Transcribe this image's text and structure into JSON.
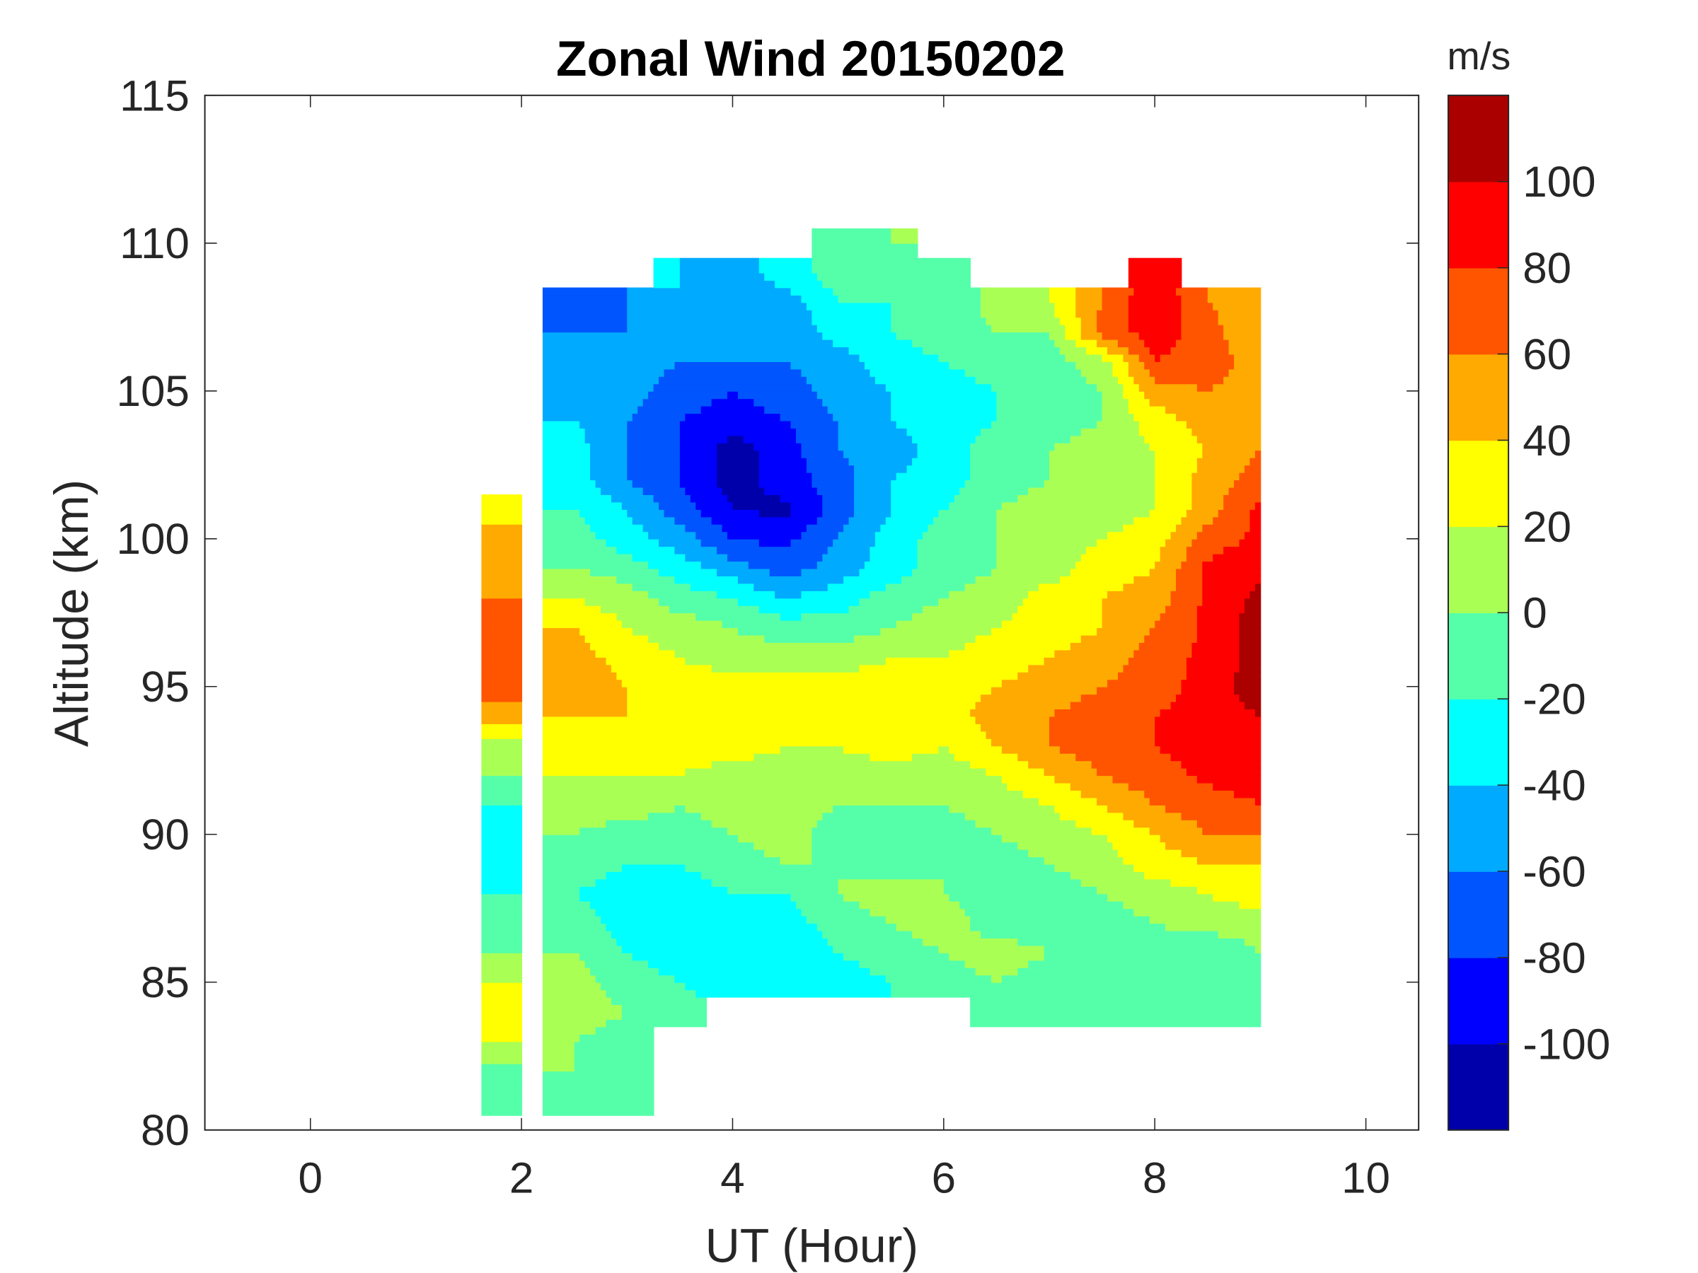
{
  "chart_data": {
    "type": "heatmap",
    "subtype": "filled-contour",
    "title": "Zonal Wind 20150202",
    "xlabel": "UT (Hour)",
    "ylabel": "Altitude (km)",
    "xlim": [
      -1,
      10.5
    ],
    "ylim": [
      80,
      115
    ],
    "xticks": [
      "0",
      "2",
      "4",
      "6",
      "8",
      "10"
    ],
    "yticks": [
      "80",
      "85",
      "90",
      "95",
      "100",
      "105",
      "110",
      "115"
    ],
    "colorbar": {
      "label": "m/s",
      "ticks": [
        "100",
        "80",
        "60",
        "40",
        "20",
        "0",
        "-20",
        "-40",
        "-60",
        "-80",
        "-100"
      ],
      "levels": [
        -120,
        -100,
        -80,
        -60,
        -40,
        -20,
        0,
        20,
        40,
        60,
        80,
        100,
        120
      ],
      "colors": [
        "#0000aa",
        "#0000ff",
        "#0055ff",
        "#00aaff",
        "#00ffff",
        "#55ffaa",
        "#aaff55",
        "#ffff00",
        "#ffaa00",
        "#ff5500",
        "#ff0000",
        "#aa0000"
      ]
    },
    "altitudes_km": [
      110,
      109,
      108,
      107,
      106,
      105,
      104,
      103,
      102,
      101,
      100,
      99,
      98,
      97,
      96,
      95,
      94,
      93,
      92,
      91,
      90,
      89,
      88,
      87,
      86,
      85,
      84,
      83,
      82,
      81
    ],
    "strip": {
      "ut_range": [
        1.62,
        2.0
      ],
      "values": [
        null,
        null,
        null,
        null,
        null,
        null,
        null,
        null,
        null,
        30,
        50,
        50,
        60,
        60,
        60,
        70,
        50,
        10,
        0,
        -20,
        -30,
        -30,
        -20,
        -10,
        0,
        20,
        30,
        20,
        -10,
        -20
      ]
    },
    "main": {
      "ut_range": [
        2.2,
        9.0
      ],
      "ut": [
        2.5,
        3.0,
        3.5,
        4.0,
        4.5,
        5.0,
        5.5,
        6.0,
        6.5,
        7.0,
        7.5,
        8.0,
        8.5,
        9.0
      ],
      "values": [
        [
          null,
          null,
          null,
          null,
          null,
          -10,
          0,
          null,
          null,
          null,
          null,
          null,
          null,
          null
        ],
        [
          null,
          null,
          -40,
          -50,
          -30,
          -10,
          -10,
          -20,
          null,
          null,
          null,
          90,
          null,
          null
        ],
        [
          -70,
          -60,
          -40,
          -60,
          -50,
          -20,
          -20,
          -20,
          10,
          20,
          60,
          100,
          60,
          40
        ],
        [
          -60,
          -60,
          -50,
          -60,
          -60,
          -30,
          -20,
          -10,
          0,
          0,
          70,
          90,
          70,
          40
        ],
        [
          -50,
          -50,
          -60,
          -60,
          -60,
          -50,
          -30,
          -20,
          -10,
          -10,
          10,
          80,
          70,
          50
        ],
        [
          -50,
          -50,
          -70,
          -80,
          -70,
          -50,
          -40,
          -30,
          -20,
          -10,
          0,
          50,
          60,
          50
        ],
        [
          -40,
          -60,
          -80,
          -90,
          -80,
          -60,
          -40,
          -30,
          -20,
          -10,
          0,
          30,
          50,
          50
        ],
        [
          -30,
          -60,
          -80,
          -110,
          -90,
          -60,
          -50,
          -30,
          -10,
          0,
          10,
          20,
          40,
          60
        ],
        [
          -30,
          -60,
          -80,
          -110,
          -90,
          -70,
          -40,
          -30,
          -10,
          0,
          10,
          20,
          50,
          70
        ],
        [
          -20,
          -40,
          -70,
          -100,
          -105,
          -70,
          -40,
          -20,
          0,
          10,
          10,
          20,
          50,
          85
        ],
        [
          -10,
          -30,
          -50,
          -80,
          -85,
          -60,
          -30,
          -10,
          0,
          10,
          20,
          30,
          70,
          85
        ],
        [
          0,
          -10,
          -30,
          -50,
          -70,
          -50,
          -30,
          -10,
          0,
          10,
          30,
          40,
          85,
          95
        ],
        [
          20,
          10,
          -10,
          -20,
          -40,
          -30,
          -10,
          0,
          10,
          30,
          40,
          50,
          85,
          105
        ],
        [
          40,
          20,
          10,
          0,
          -10,
          -10,
          0,
          10,
          20,
          30,
          40,
          60,
          85,
          110
        ],
        [
          50,
          30,
          20,
          10,
          10,
          10,
          20,
          20,
          30,
          40,
          50,
          70,
          85,
          110
        ],
        [
          60,
          40,
          30,
          30,
          30,
          30,
          30,
          30,
          40,
          50,
          60,
          70,
          90,
          110
        ],
        [
          40,
          40,
          30,
          30,
          30,
          30,
          30,
          30,
          50,
          60,
          70,
          80,
          90,
          100
        ],
        [
          30,
          30,
          30,
          30,
          20,
          20,
          30,
          20,
          40,
          60,
          70,
          80,
          90,
          90
        ],
        [
          20,
          20,
          20,
          10,
          10,
          10,
          10,
          10,
          20,
          40,
          60,
          70,
          85,
          90
        ],
        [
          10,
          10,
          0,
          10,
          10,
          0,
          0,
          0,
          10,
          20,
          40,
          60,
          70,
          80
        ],
        [
          0,
          -10,
          -10,
          0,
          10,
          -10,
          -20,
          -10,
          0,
          10,
          20,
          40,
          60,
          60
        ],
        [
          -10,
          -20,
          -20,
          -10,
          0,
          0,
          -10,
          0,
          -10,
          0,
          10,
          30,
          40,
          40
        ],
        [
          -20,
          -30,
          -30,
          -20,
          -20,
          0,
          10,
          0,
          -10,
          -10,
          0,
          10,
          20,
          30
        ],
        [
          -10,
          -30,
          -40,
          -30,
          -30,
          -10,
          0,
          10,
          -10,
          -10,
          -10,
          0,
          10,
          10
        ],
        [
          0,
          -20,
          -30,
          -30,
          -40,
          -20,
          -10,
          0,
          10,
          0,
          -10,
          -10,
          -20,
          0
        ],
        [
          10,
          -10,
          -20,
          -30,
          -30,
          -30,
          -20,
          -10,
          0,
          -10,
          -10,
          -10,
          -10,
          -10
        ],
        [
          10,
          0,
          -10,
          null,
          null,
          null,
          null,
          null,
          -20,
          -10,
          -10,
          -10,
          -10,
          -10
        ],
        [
          0,
          -10,
          null,
          null,
          null,
          null,
          null,
          null,
          null,
          null,
          null,
          null,
          null,
          null
        ],
        [
          0,
          -10,
          null,
          null,
          null,
          null,
          null,
          null,
          null,
          null,
          null,
          null,
          null,
          null
        ],
        [
          -10,
          -10,
          null,
          null,
          null,
          null,
          null,
          null,
          null,
          null,
          null,
          null,
          null,
          null
        ]
      ]
    }
  }
}
